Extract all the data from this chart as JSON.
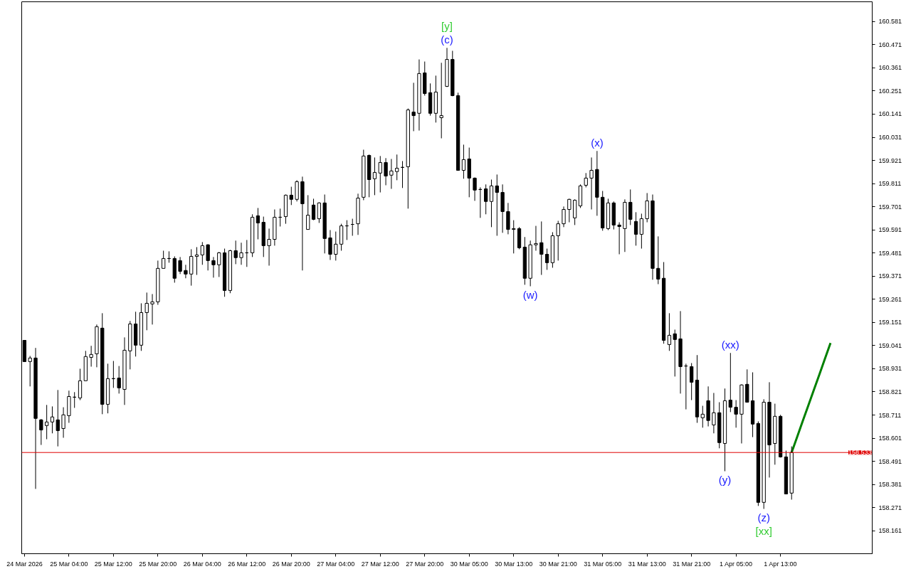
{
  "chart_data": {
    "type": "candlestick",
    "categories": [
      "24 Mar 2026",
      null,
      null,
      null,
      null,
      null,
      null,
      null,
      "25 Mar 04:00",
      null,
      null,
      null,
      null,
      null,
      null,
      null,
      "25 Mar 12:00",
      null,
      null,
      null,
      null,
      null,
      null,
      null,
      "25 Mar 20:00",
      null,
      null,
      null,
      null,
      null,
      null,
      null,
      "26 Mar 04:00",
      null,
      null,
      null,
      null,
      null,
      null,
      null,
      "26 Mar 12:00",
      null,
      null,
      null,
      null,
      null,
      null,
      null,
      "26 Mar 20:00",
      null,
      null,
      null,
      null,
      null,
      null,
      null,
      "27 Mar 04:00",
      null,
      null,
      null,
      null,
      null,
      null,
      null,
      "27 Mar 12:00",
      null,
      null,
      null,
      null,
      null,
      null,
      null,
      "27 Mar 20:00",
      null,
      null,
      null,
      null,
      null,
      null,
      null,
      "30 Mar 05:00",
      null,
      null,
      null,
      null,
      null,
      null,
      null,
      "30 Mar 13:00",
      null,
      null,
      null,
      null,
      null,
      null,
      null,
      "30 Mar 21:00",
      null,
      null,
      null,
      null,
      null,
      null,
      null,
      "31 Mar 05:00",
      null,
      null,
      null,
      null,
      null,
      null,
      null,
      "31 Mar 13:00",
      null,
      null,
      null,
      null,
      null,
      null,
      null,
      "31 Mar 21:00",
      null,
      null,
      null,
      null,
      null,
      null,
      null,
      "1 Apr 05:00",
      null,
      null,
      null,
      null,
      null,
      null,
      null,
      "1 Apr 13:00",
      null,
      null,
      null,
      null,
      null,
      null,
      null,
      null,
      null,
      null,
      null,
      null,
      null,
      null,
      null,
      null
    ],
    "ohlc": [
      [
        159.066,
        159.066,
        158.965,
        158.965
      ],
      [
        158.965,
        158.992,
        158.847,
        158.982
      ],
      [
        158.982,
        159.03,
        158.36,
        158.695
      ],
      [
        158.688,
        158.692,
        158.569,
        158.64
      ],
      [
        158.661,
        158.759,
        158.596,
        158.678
      ],
      [
        158.678,
        158.752,
        158.624,
        158.702
      ],
      [
        158.688,
        158.83,
        158.562,
        158.637
      ],
      [
        158.647,
        158.748,
        158.603,
        158.712
      ],
      [
        158.708,
        158.827,
        158.674,
        158.799
      ],
      [
        158.796,
        158.82,
        158.745,
        158.796
      ],
      [
        158.792,
        158.931,
        158.782,
        158.874
      ],
      [
        158.874,
        159.016,
        158.874,
        158.989
      ],
      [
        158.985,
        159.04,
        158.941,
        158.999
      ],
      [
        159.002,
        159.141,
        158.938,
        159.131
      ],
      [
        159.124,
        159.195,
        158.715,
        158.762
      ],
      [
        158.762,
        158.955,
        158.719,
        158.884
      ],
      [
        158.884,
        158.968,
        158.84,
        158.884
      ],
      [
        158.887,
        158.944,
        158.813,
        158.84
      ],
      [
        158.833,
        159.08,
        158.759,
        159.019
      ],
      [
        159.016,
        159.158,
        158.928,
        159.144
      ],
      [
        159.144,
        159.202,
        158.989,
        159.043
      ],
      [
        159.043,
        159.242,
        159.016,
        159.198
      ],
      [
        159.198,
        159.293,
        159.114,
        159.242
      ],
      [
        159.239,
        159.286,
        159.141,
        159.249
      ],
      [
        159.249,
        159.445,
        159.235,
        159.408
      ],
      [
        159.408,
        159.492,
        159.408,
        159.455
      ],
      [
        159.455,
        159.489,
        159.435,
        159.455
      ],
      [
        159.455,
        159.465,
        159.34,
        159.361
      ],
      [
        159.445,
        159.462,
        159.381,
        159.394
      ],
      [
        159.398,
        159.425,
        159.361,
        159.381
      ],
      [
        159.381,
        159.499,
        159.326,
        159.465
      ],
      [
        159.465,
        159.509,
        159.377,
        159.472
      ],
      [
        159.472,
        159.533,
        159.425,
        159.516
      ],
      [
        159.52,
        159.523,
        159.398,
        159.445
      ],
      [
        159.445,
        159.462,
        159.364,
        159.425
      ],
      [
        159.425,
        159.486,
        159.367,
        159.482
      ],
      [
        159.482,
        159.502,
        159.273,
        159.303
      ],
      [
        159.303,
        159.496,
        159.29,
        159.492
      ],
      [
        159.492,
        159.54,
        159.428,
        159.459
      ],
      [
        159.459,
        159.53,
        159.425,
        159.482
      ],
      [
        159.482,
        159.543,
        159.415,
        159.482
      ],
      [
        159.482,
        159.665,
        159.462,
        159.651
      ],
      [
        159.658,
        159.695,
        159.546,
        159.624
      ],
      [
        159.627,
        159.654,
        159.462,
        159.516
      ],
      [
        159.516,
        159.597,
        159.421,
        159.546
      ],
      [
        159.546,
        159.688,
        159.516,
        159.651
      ],
      [
        159.651,
        159.692,
        159.607,
        159.651
      ],
      [
        159.654,
        159.759,
        159.62,
        159.756
      ],
      [
        159.756,
        159.796,
        159.709,
        159.736
      ],
      [
        159.736,
        159.827,
        159.726,
        159.82
      ],
      [
        159.82,
        159.844,
        159.398,
        159.715
      ],
      [
        159.593,
        159.756,
        159.593,
        159.661
      ],
      [
        159.709,
        159.739,
        159.637,
        159.641
      ],
      [
        159.644,
        159.722,
        159.624,
        159.719
      ],
      [
        159.719,
        159.759,
        159.479,
        159.55
      ],
      [
        159.553,
        159.59,
        159.448,
        159.475
      ],
      [
        159.475,
        159.583,
        159.445,
        159.523
      ],
      [
        159.523,
        159.62,
        159.492,
        159.61
      ],
      [
        159.61,
        159.637,
        159.543,
        159.61
      ],
      [
        159.617,
        159.644,
        159.563,
        159.617
      ],
      [
        159.62,
        159.763,
        159.567,
        159.742
      ],
      [
        159.746,
        159.972,
        159.732,
        159.942
      ],
      [
        159.945,
        159.949,
        159.746,
        159.83
      ],
      [
        159.834,
        159.935,
        159.756,
        159.864
      ],
      [
        159.861,
        159.942,
        159.769,
        159.911
      ],
      [
        159.911,
        159.932,
        159.803,
        159.847
      ],
      [
        159.851,
        159.928,
        159.786,
        159.871
      ],
      [
        159.868,
        159.949,
        159.827,
        159.884
      ],
      [
        159.888,
        159.918,
        159.79,
        159.888
      ],
      [
        159.891,
        160.168,
        159.692,
        160.161
      ],
      [
        160.151,
        160.29,
        160.06,
        160.134
      ],
      [
        160.145,
        160.401,
        160.063,
        160.334
      ],
      [
        160.337,
        160.391,
        160.229,
        160.239
      ],
      [
        160.243,
        160.287,
        160.134,
        160.145
      ],
      [
        160.145,
        160.324,
        160.101,
        160.246
      ],
      [
        160.124,
        160.385,
        160.026,
        160.134
      ],
      [
        160.273,
        160.456,
        160.27,
        160.401
      ],
      [
        160.401,
        160.442,
        160.226,
        160.229
      ],
      [
        160.229,
        160.243,
        159.874,
        159.874
      ],
      [
        159.874,
        159.996,
        159.834,
        159.925
      ],
      [
        159.928,
        159.982,
        159.746,
        159.837
      ],
      [
        159.837,
        159.84,
        159.729,
        159.78
      ],
      [
        159.783,
        159.793,
        159.648,
        159.783
      ],
      [
        159.786,
        159.807,
        159.665,
        159.726
      ],
      [
        159.726,
        159.83,
        159.604,
        159.8
      ],
      [
        159.8,
        159.854,
        159.563,
        159.769
      ],
      [
        159.769,
        159.807,
        159.577,
        159.678
      ],
      [
        159.678,
        159.719,
        159.57,
        159.593
      ],
      [
        159.593,
        159.637,
        159.479,
        159.597
      ],
      [
        159.597,
        159.604,
        159.499,
        159.506
      ],
      [
        159.509,
        159.557,
        159.33,
        159.361
      ],
      [
        159.361,
        159.54,
        159.323,
        159.52
      ],
      [
        159.52,
        159.61,
        159.492,
        159.526
      ],
      [
        159.53,
        159.631,
        159.377,
        159.475
      ],
      [
        159.475,
        159.502,
        159.401,
        159.435
      ],
      [
        159.435,
        159.58,
        159.411,
        159.563
      ],
      [
        159.563,
        159.634,
        159.445,
        159.62
      ],
      [
        159.62,
        159.702,
        159.604,
        159.688
      ],
      [
        159.688,
        159.739,
        159.627,
        159.736
      ],
      [
        159.648,
        159.736,
        159.614,
        159.732
      ],
      [
        159.705,
        159.807,
        159.695,
        159.8
      ],
      [
        159.803,
        159.861,
        159.793,
        159.837
      ],
      [
        159.837,
        159.935,
        159.688,
        159.874
      ],
      [
        159.878,
        159.966,
        159.658,
        159.746
      ],
      [
        159.746,
        159.776,
        159.587,
        159.6
      ],
      [
        159.597,
        159.739,
        159.59,
        159.719
      ],
      [
        159.719,
        159.726,
        159.593,
        159.614
      ],
      [
        159.614,
        159.627,
        159.475,
        159.607
      ],
      [
        159.597,
        159.736,
        159.486,
        159.722
      ],
      [
        159.722,
        159.783,
        159.614,
        159.641
      ],
      [
        159.631,
        159.675,
        159.516,
        159.57
      ],
      [
        159.57,
        159.668,
        159.502,
        159.644
      ],
      [
        159.644,
        159.766,
        159.627,
        159.729
      ],
      [
        159.729,
        159.759,
        159.354,
        159.408
      ],
      [
        159.408,
        159.56,
        159.333,
        159.357
      ],
      [
        159.361,
        159.438,
        159.05,
        159.066
      ],
      [
        159.046,
        159.195,
        159.016,
        159.09
      ],
      [
        159.097,
        159.117,
        158.894,
        159.07
      ],
      [
        159.073,
        159.205,
        158.813,
        158.941
      ],
      [
        158.944,
        158.955,
        158.738,
        158.944
      ],
      [
        158.941,
        158.958,
        158.782,
        158.867
      ],
      [
        158.877,
        158.996,
        158.674,
        158.702
      ],
      [
        158.698,
        158.755,
        158.651,
        158.715
      ],
      [
        158.779,
        158.847,
        158.657,
        158.685
      ],
      [
        158.664,
        158.816,
        158.624,
        158.722
      ],
      [
        158.722,
        158.772,
        158.553,
        158.58
      ],
      [
        158.576,
        158.837,
        158.444,
        158.779
      ],
      [
        158.782,
        159.006,
        158.725,
        158.748
      ],
      [
        158.748,
        158.782,
        158.651,
        158.715
      ],
      [
        158.715,
        158.857,
        158.576,
        158.854
      ],
      [
        158.857,
        158.928,
        158.772,
        158.772
      ],
      [
        158.779,
        158.914,
        158.606,
        158.668
      ],
      [
        158.671,
        158.681,
        158.279,
        158.296
      ],
      [
        158.296,
        158.786,
        158.265,
        158.772
      ],
      [
        158.772,
        158.867,
        158.414,
        158.569
      ],
      [
        158.576,
        158.765,
        158.475,
        158.705
      ],
      [
        158.705,
        158.712,
        158.509,
        158.512
      ],
      [
        158.512,
        158.542,
        158.336,
        158.336
      ],
      [
        158.34,
        158.562,
        158.309,
        158.533
      ],
      null,
      null,
      null,
      null,
      null,
      null,
      null,
      null,
      null,
      null,
      null,
      null,
      null,
      null
    ],
    "series": [
      {
        "type": "line",
        "color": "#008000",
        "values": [
          null,
          null,
          null,
          null,
          null,
          null,
          null,
          null,
          null,
          null,
          null,
          null,
          null,
          null,
          null,
          null,
          null,
          null,
          null,
          null,
          null,
          null,
          null,
          null,
          null,
          null,
          null,
          null,
          null,
          null,
          null,
          null,
          null,
          null,
          null,
          null,
          null,
          null,
          null,
          null,
          null,
          null,
          null,
          null,
          null,
          null,
          null,
          null,
          null,
          null,
          null,
          null,
          null,
          null,
          null,
          null,
          null,
          null,
          null,
          null,
          null,
          null,
          null,
          null,
          null,
          null,
          null,
          null,
          null,
          null,
          null,
          null,
          null,
          null,
          null,
          null,
          null,
          null,
          null,
          null,
          null,
          null,
          null,
          null,
          null,
          null,
          null,
          null,
          null,
          null,
          null,
          null,
          null,
          null,
          null,
          null,
          null,
          null,
          null,
          null,
          null,
          null,
          null,
          null,
          null,
          null,
          null,
          null,
          null,
          null,
          null,
          null,
          null,
          null,
          null,
          null,
          null,
          null,
          null,
          null,
          null,
          null,
          null,
          null,
          null,
          null,
          null,
          null,
          null,
          null,
          null,
          null,
          null,
          null,
          null,
          null,
          null,
          null,
          158.533,
          158.607,
          158.682,
          158.756,
          158.83,
          158.904,
          158.979,
          159.053,
          null,
          null,
          null,
          null,
          null,
          null,
          null
        ]
      }
    ],
    "ylim": [
      158.052,
      160.675
    ],
    "yticks": [
      158.161,
      158.271,
      158.381,
      158.491,
      158.601,
      158.711,
      158.821,
      158.931,
      159.041,
      159.151,
      159.261,
      159.371,
      159.481,
      159.591,
      159.701,
      159.811,
      159.921,
      160.031,
      160.141,
      160.251,
      160.361,
      160.471,
      160.581
    ],
    "ref_lines": [
      {
        "axis": "y",
        "value": 158.533,
        "label": "158.533",
        "color": "#e00000"
      }
    ],
    "annotations": [
      {
        "text": "(c)",
        "y": 160.456
      },
      {
        "text": "[y]",
        "y": 160.456
      },
      {
        "text": "(w)",
        "y": 159.323
      },
      {
        "text": "(x)",
        "y": 159.966
      },
      {
        "text": "(xx)",
        "y": 159.006
      },
      {
        "text": "(y)",
        "y": 158.444
      },
      {
        "text": "(z)",
        "y": 158.265
      },
      {
        "text": "[xx]",
        "y": 158.265
      }
    ],
    "grid": false
  }
}
